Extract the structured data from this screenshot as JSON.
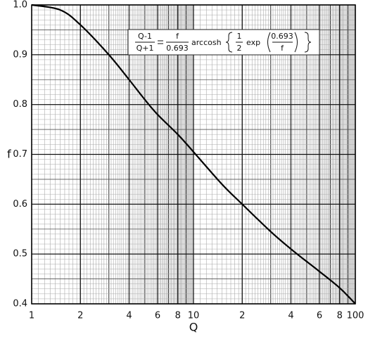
{
  "chart_data": {
    "type": "line",
    "x_label": "Q",
    "y_label": "f",
    "log_x": true,
    "grid": true,
    "color": "#000000",
    "x": [
      1,
      1.5,
      2,
      3,
      4,
      5,
      6,
      8,
      10,
      15,
      20,
      30,
      40,
      50,
      60,
      80,
      100
    ],
    "values": [
      1.0,
      0.99,
      0.96,
      0.9,
      0.85,
      0.81,
      0.78,
      0.74,
      0.705,
      0.64,
      0.6,
      0.545,
      0.51,
      0.485,
      0.465,
      0.432,
      0.4
    ],
    "xlim": [
      1,
      100
    ],
    "ylim": [
      0.4,
      1.0
    ],
    "xticks": [
      1,
      2,
      4,
      6,
      8,
      10,
      {
        "value": 20,
        "label": "2"
      },
      {
        "value": 40,
        "label": "4"
      },
      {
        "value": 60,
        "label": "6"
      },
      {
        "value": 80,
        "label": "8"
      },
      100
    ],
    "yticks": [
      0.4,
      0.5,
      0.6,
      0.7,
      0.8,
      0.9,
      {
        "value": 1.0,
        "label": "1.0"
      }
    ],
    "annotation": {
      "lhs_num": "Q-1",
      "lhs_den": "Q+1",
      "rhs_num": "f",
      "rhs_den": "0.693",
      "func": "arccosh",
      "half_num": "1",
      "half_den": "2",
      "exp": "exp",
      "inner_num": "0.693",
      "inner_den": "f"
    }
  }
}
